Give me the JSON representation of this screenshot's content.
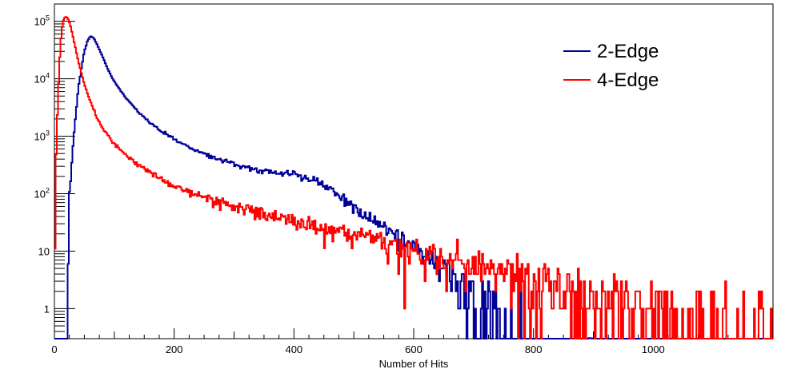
{
  "chart_data": {
    "type": "line",
    "title": "",
    "xlabel": "Number of Hits",
    "ylabel": "",
    "xlim": [
      0,
      1200
    ],
    "ylim": [
      0.3,
      200000
    ],
    "yscale": "log",
    "grid": false,
    "legend_position": "top-right",
    "x_ticks": [
      0,
      200,
      400,
      600,
      800,
      1000
    ],
    "y_ticks": [
      {
        "value": 1,
        "base": "1",
        "exp": ""
      },
      {
        "value": 10,
        "base": "10",
        "exp": ""
      },
      {
        "value": 100,
        "base": "10",
        "exp": "2"
      },
      {
        "value": 1000,
        "base": "10",
        "exp": "3"
      },
      {
        "value": 10000,
        "base": "10",
        "exp": "4"
      },
      {
        "value": 100000,
        "base": "10",
        "exp": "5"
      }
    ],
    "series": [
      {
        "name": "2-Edge",
        "color": "#000099",
        "x": [
          20,
          22,
          25,
          30,
          35,
          40,
          45,
          50,
          55,
          60,
          65,
          70,
          80,
          90,
          100,
          120,
          140,
          160,
          180,
          200,
          230,
          260,
          300,
          340,
          380,
          420,
          460,
          480,
          500,
          520,
          540,
          560,
          580,
          600,
          620,
          640,
          660,
          680,
          700,
          720,
          740,
          760,
          780,
          800,
          830,
          860,
          900,
          950,
          1000,
          1050,
          1100,
          1150,
          1200
        ],
        "y": [
          0.3,
          0.3,
          100,
          500,
          2000,
          7000,
          15000,
          30000,
          45000,
          55000,
          52000,
          42000,
          25000,
          14000,
          9000,
          4500,
          2700,
          1700,
          1200,
          900,
          600,
          450,
          330,
          260,
          230,
          190,
          130,
          85,
          55,
          40,
          30,
          22,
          16,
          12,
          9,
          6,
          4,
          3,
          2,
          1.5,
          1,
          0.8,
          0.6,
          0.5,
          0.4,
          0.35,
          0.3,
          0.3,
          0.3,
          0.3,
          0.3,
          0.3,
          0.3
        ]
      },
      {
        "name": "4-Edge",
        "color": "#ff0000",
        "x": [
          0,
          3,
          6,
          10,
          14,
          18,
          22,
          26,
          30,
          35,
          40,
          50,
          60,
          70,
          80,
          100,
          120,
          140,
          160,
          180,
          200,
          230,
          260,
          300,
          340,
          380,
          420,
          460,
          500,
          540,
          580,
          620,
          660,
          700,
          740,
          780,
          820,
          860,
          900,
          950,
          1000,
          1050,
          1100,
          1150,
          1200
        ],
        "y": [
          3,
          500,
          5000,
          40000,
          100000,
          120000,
          115000,
          90000,
          60000,
          35000,
          20000,
          8000,
          4000,
          2200,
          1400,
          750,
          460,
          320,
          230,
          175,
          140,
          100,
          80,
          60,
          47,
          38,
          30,
          23,
          18,
          14,
          11,
          8.5,
          7,
          5.5,
          4.5,
          3.6,
          3,
          2.5,
          2,
          1.6,
          1.3,
          1.1,
          0.9,
          0.8,
          0.7
        ]
      }
    ]
  }
}
